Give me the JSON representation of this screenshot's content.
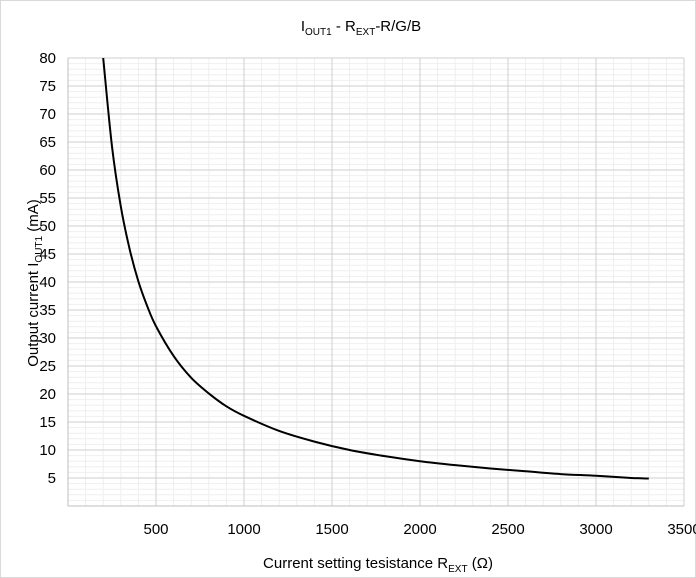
{
  "chart_data": {
    "type": "line",
    "title": {
      "main": "I",
      "main_sub": "OUT1",
      "mid": " - R",
      "mid_sub": "EXT",
      "tail": "-R/G/B"
    },
    "xlabel": {
      "main": "Current setting tesistance R",
      "sub": "EXT",
      "tail": " (Ω)"
    },
    "ylabel": {
      "main": "Output current I",
      "sub": "OUT1",
      "tail": " (mA)"
    },
    "xlim": [
      0,
      3500
    ],
    "ylim": [
      0,
      80
    ],
    "x_ticks": [
      500,
      1000,
      1500,
      2000,
      2500,
      3000,
      3500
    ],
    "x_tick_labels": [
      "500",
      "1000",
      "1500",
      "2000",
      "2500",
      "3000",
      "3500"
    ],
    "y_ticks": [
      5,
      10,
      15,
      20,
      25,
      30,
      35,
      40,
      45,
      50,
      55,
      60,
      65,
      70,
      75,
      80
    ],
    "y_tick_labels": [
      "5",
      "10",
      "15",
      "20",
      "25",
      "30",
      "35",
      "40",
      "45",
      "50",
      "55",
      "60",
      "65",
      "70",
      "75",
      "80"
    ],
    "grid": true,
    "minor_grid": true,
    "minor_x_step": 100,
    "minor_y_step": 1,
    "series": [
      {
        "color": "#000000",
        "x": [
          200,
          250,
          300,
          350,
          400,
          450,
          500,
          600,
          700,
          800,
          900,
          1000,
          1200,
          1400,
          1600,
          1800,
          2000,
          2200,
          2400,
          2600,
          2800,
          3000,
          3200,
          3300
        ],
        "y": [
          80.0,
          64.2,
          53.5,
          45.9,
          40.1,
          35.7,
          32.1,
          26.8,
          22.9,
          20.1,
          17.8,
          16.1,
          13.4,
          11.5,
          10.0,
          8.9,
          8.0,
          7.3,
          6.7,
          6.2,
          5.7,
          5.4,
          5.0,
          4.9
        ]
      }
    ]
  }
}
